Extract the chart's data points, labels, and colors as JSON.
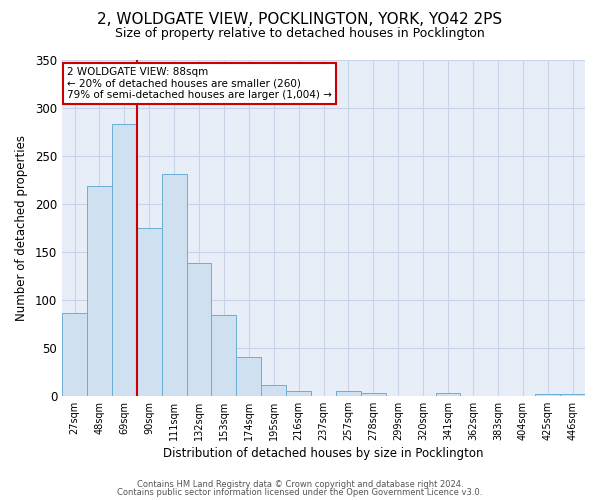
{
  "title": "2, WOLDGATE VIEW, POCKLINGTON, YORK, YO42 2PS",
  "subtitle": "Size of property relative to detached houses in Pocklington",
  "xlabel": "Distribution of detached houses by size in Pocklington",
  "ylabel": "Number of detached properties",
  "bar_labels": [
    "27sqm",
    "48sqm",
    "69sqm",
    "90sqm",
    "111sqm",
    "132sqm",
    "153sqm",
    "174sqm",
    "195sqm",
    "216sqm",
    "237sqm",
    "257sqm",
    "278sqm",
    "299sqm",
    "320sqm",
    "341sqm",
    "362sqm",
    "383sqm",
    "404sqm",
    "425sqm",
    "446sqm"
  ],
  "bar_values": [
    86,
    219,
    283,
    175,
    231,
    138,
    84,
    40,
    11,
    5,
    0,
    5,
    3,
    0,
    0,
    3,
    0,
    0,
    0,
    2,
    2
  ],
  "bar_color": "#cfe0f0",
  "bar_edge_color": "#6aaed6",
  "vline_color": "#cc0000",
  "annotation_text": "2 WOLDGATE VIEW: 88sqm\n← 20% of detached houses are smaller (260)\n79% of semi-detached houses are larger (1,004) →",
  "annotation_box_color": "#ffffff",
  "annotation_box_edge": "#cc0000",
  "ylim": [
    0,
    350
  ],
  "yticks": [
    0,
    50,
    100,
    150,
    200,
    250,
    300,
    350
  ],
  "footer1": "Contains HM Land Registry data © Crown copyright and database right 2024.",
  "footer2": "Contains public sector information licensed under the Open Government Licence v3.0.",
  "background_color": "#ffffff",
  "plot_bg_color": "#e8eef8",
  "grid_color": "#c8d4e8",
  "title_fontsize": 11,
  "subtitle_fontsize": 9
}
